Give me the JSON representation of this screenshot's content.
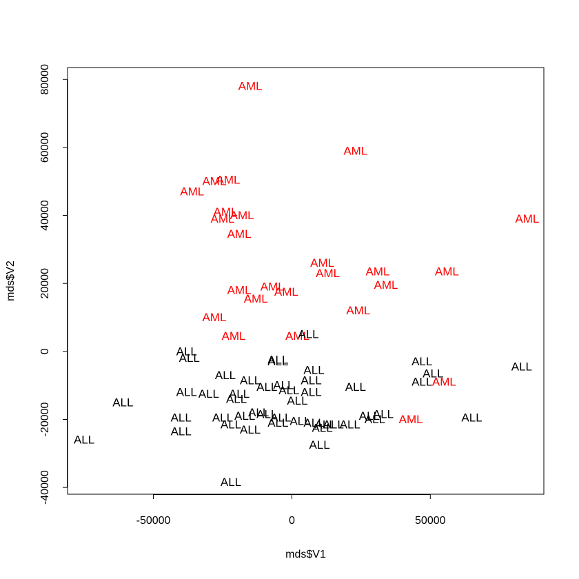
{
  "chart_data": {
    "type": "scatter",
    "title": "",
    "xlabel": "mds$V1",
    "ylabel": "mds$V2",
    "xlim": [
      -81000,
      91000
    ],
    "ylim": [
      -42000,
      83500
    ],
    "xticks": [
      -50000,
      0,
      50000
    ],
    "xtick_labels": [
      "-50000",
      "0",
      "50000"
    ],
    "yticks": [
      -40000,
      -20000,
      0,
      20000,
      40000,
      60000,
      80000
    ],
    "ytick_labels": [
      "-40000",
      "-20000",
      "0",
      "20000",
      "40000",
      "60000",
      "80000"
    ],
    "grid": false,
    "legend": "none",
    "marker": "text labels",
    "colors": {
      "ALL": "#000000",
      "AML": "#ff0000"
    },
    "series": [
      {
        "label": "AML",
        "color": "#ff0000",
        "points": [
          {
            "x": -15000,
            "y": 78000
          },
          {
            "x": 23000,
            "y": 59000
          },
          {
            "x": -28000,
            "y": 50000
          },
          {
            "x": -23000,
            "y": 50500
          },
          {
            "x": -36000,
            "y": 47000
          },
          {
            "x": -24000,
            "y": 41000
          },
          {
            "x": -18000,
            "y": 40000
          },
          {
            "x": -25000,
            "y": 39000
          },
          {
            "x": -19000,
            "y": 34500
          },
          {
            "x": 85000,
            "y": 39000
          },
          {
            "x": 11000,
            "y": 26000
          },
          {
            "x": 13000,
            "y": 23000
          },
          {
            "x": 31000,
            "y": 23500
          },
          {
            "x": 56000,
            "y": 23500
          },
          {
            "x": 34000,
            "y": 19500
          },
          {
            "x": -19000,
            "y": 18000
          },
          {
            "x": -7000,
            "y": 19000
          },
          {
            "x": -2000,
            "y": 17500
          },
          {
            "x": -13000,
            "y": 15500
          },
          {
            "x": 24000,
            "y": 12000
          },
          {
            "x": -28000,
            "y": 10000
          },
          {
            "x": -21000,
            "y": 4500
          },
          {
            "x": 2000,
            "y": 4500
          },
          {
            "x": 55000,
            "y": -9000
          },
          {
            "x": 43000,
            "y": -20000
          }
        ]
      },
      {
        "label": "ALL",
        "color": "#000000",
        "points": [
          {
            "x": 6000,
            "y": 5000
          },
          {
            "x": -38000,
            "y": 0
          },
          {
            "x": -37000,
            "y": -2000
          },
          {
            "x": -5000,
            "y": -2500
          },
          {
            "x": -5000,
            "y": -3000
          },
          {
            "x": 47000,
            "y": -3000
          },
          {
            "x": 83000,
            "y": -4500
          },
          {
            "x": 8000,
            "y": -5500
          },
          {
            "x": 51000,
            "y": -6500
          },
          {
            "x": -24000,
            "y": -7000
          },
          {
            "x": -15000,
            "y": -8500
          },
          {
            "x": 7000,
            "y": -8500
          },
          {
            "x": 47000,
            "y": -9000
          },
          {
            "x": -3000,
            "y": -10000
          },
          {
            "x": -9000,
            "y": -10500
          },
          {
            "x": 23000,
            "y": -10500
          },
          {
            "x": -1000,
            "y": -11500
          },
          {
            "x": 7000,
            "y": -12000
          },
          {
            "x": -38000,
            "y": -12000
          },
          {
            "x": -30000,
            "y": -12500
          },
          {
            "x": -19000,
            "y": -12500
          },
          {
            "x": -20000,
            "y": -14000
          },
          {
            "x": 2000,
            "y": -14500
          },
          {
            "x": -61000,
            "y": -15000
          },
          {
            "x": -12000,
            "y": -18000
          },
          {
            "x": -17000,
            "y": -19000
          },
          {
            "x": -9000,
            "y": -18500
          },
          {
            "x": -4000,
            "y": -19500
          },
          {
            "x": 28000,
            "y": -19000
          },
          {
            "x": 33000,
            "y": -18500
          },
          {
            "x": -40000,
            "y": -19500
          },
          {
            "x": -25000,
            "y": -19500
          },
          {
            "x": 65000,
            "y": -19500
          },
          {
            "x": 30000,
            "y": -20000
          },
          {
            "x": 3000,
            "y": -20500
          },
          {
            "x": 8000,
            "y": -21000
          },
          {
            "x": 12000,
            "y": -21500
          },
          {
            "x": 15000,
            "y": -21500
          },
          {
            "x": 21000,
            "y": -21500
          },
          {
            "x": -5000,
            "y": -21000
          },
          {
            "x": -22000,
            "y": -21500
          },
          {
            "x": 11000,
            "y": -22500
          },
          {
            "x": -15000,
            "y": -23000
          },
          {
            "x": -40000,
            "y": -23500
          },
          {
            "x": -75000,
            "y": -26000
          },
          {
            "x": 10000,
            "y": -27500
          },
          {
            "x": -22000,
            "y": -38500
          }
        ]
      }
    ]
  }
}
